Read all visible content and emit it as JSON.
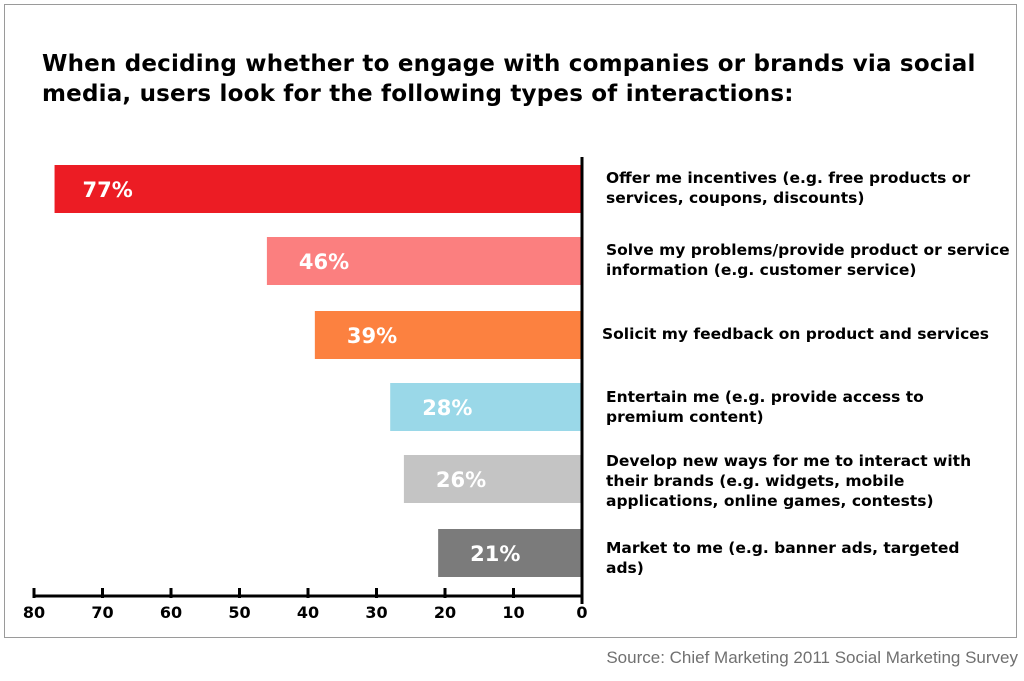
{
  "source": "Source: Chief Marketing 2011 Social Marketing Survey",
  "chart_data": {
    "type": "bar",
    "orientation": "horizontal",
    "title": "When deciding whether to engage with companies or brands via social media, users look for the following types of interactions:",
    "categories": [
      "Offer me incentives (e.g. free products or services, coupons, discounts)",
      "Solve my problems/provide product or service information (e.g. customer service)",
      "Solicit my feedback on product and services",
      "Entertain me (e.g. provide access to premium content)",
      "Develop new ways for me to interact with their brands (e.g. widgets, mobile applications, online games, contests)",
      "Market to me (e.g. banner ads, targeted ads)"
    ],
    "values": [
      77,
      46,
      39,
      28,
      26,
      21
    ],
    "value_labels": [
      "77%",
      "46%",
      "39%",
      "28%",
      "26%",
      "21%"
    ],
    "colors": [
      "#ec1c24",
      "#fb7f7f",
      "#fc8140",
      "#9ad8e8",
      "#c4c4c4",
      "#7b7b7b"
    ],
    "xlim": [
      80,
      0
    ],
    "xticks": [
      80,
      70,
      60,
      50,
      40,
      30,
      20,
      10,
      0
    ],
    "xtick_labels": [
      "80",
      "70",
      "60",
      "50",
      "40",
      "30",
      "20",
      "10",
      "0"
    ],
    "bars_extend": "left",
    "grid": false,
    "legend": "none"
  }
}
